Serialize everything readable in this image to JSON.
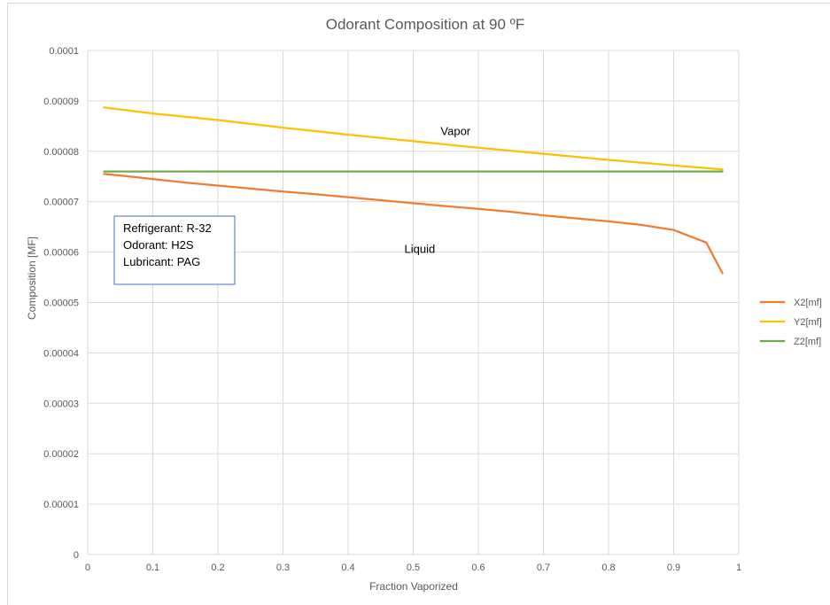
{
  "chart_data": {
    "type": "line",
    "title": "Odorant Composition at 90 ºF",
    "xlabel": "Fraction Vaporized",
    "ylabel": "Composition [MF]",
    "xlim": [
      0,
      1
    ],
    "ylim": [
      0,
      0.0001
    ],
    "x_ticks": [
      "0",
      "0.1",
      "0.2",
      "0.3",
      "0.4",
      "0.5",
      "0.6",
      "0.7",
      "0.8",
      "0.9",
      "1"
    ],
    "y_ticks": [
      "0",
      "0.00001",
      "0.00002",
      "0.00003",
      "0.00004",
      "0.00005",
      "0.00006",
      "0.00007",
      "0.00008",
      "0.00009",
      "0.0001"
    ],
    "grid": true,
    "legend_position": "right",
    "series": [
      {
        "name": "X2[mf]",
        "color": "#ED7D31",
        "points": [
          [
            0.025,
            7.55e-05
          ],
          [
            0.05,
            7.52e-05
          ],
          [
            0.1,
            7.45e-05
          ],
          [
            0.15,
            7.38e-05
          ],
          [
            0.2,
            7.32e-05
          ],
          [
            0.25,
            7.26e-05
          ],
          [
            0.3,
            7.2e-05
          ],
          [
            0.35,
            7.15e-05
          ],
          [
            0.4,
            7.09e-05
          ],
          [
            0.45,
            7.03e-05
          ],
          [
            0.5,
            6.97e-05
          ],
          [
            0.55,
            6.91e-05
          ],
          [
            0.6,
            6.86e-05
          ],
          [
            0.65,
            6.8e-05
          ],
          [
            0.7,
            6.73e-05
          ],
          [
            0.75,
            6.67e-05
          ],
          [
            0.8,
            6.61e-05
          ],
          [
            0.85,
            6.54e-05
          ],
          [
            0.9,
            6.44e-05
          ],
          [
            0.95,
            6.19e-05
          ],
          [
            0.975,
            5.58e-05
          ]
        ]
      },
      {
        "name": "Y2[mf]",
        "color": "#FFC000",
        "points": [
          [
            0.025,
            8.87e-05
          ],
          [
            0.1,
            8.75e-05
          ],
          [
            0.2,
            8.62e-05
          ],
          [
            0.3,
            8.47e-05
          ],
          [
            0.4,
            8.33e-05
          ],
          [
            0.5,
            8.2e-05
          ],
          [
            0.6,
            8.07e-05
          ],
          [
            0.7,
            7.95e-05
          ],
          [
            0.8,
            7.83e-05
          ],
          [
            0.9,
            7.72e-05
          ],
          [
            0.975,
            7.64e-05
          ]
        ]
      },
      {
        "name": "Z2[mf]",
        "color": "#70AD47",
        "points": [
          [
            0.025,
            7.6e-05
          ],
          [
            0.975,
            7.6e-05
          ]
        ]
      }
    ],
    "annotations": [
      {
        "text": "Vapor",
        "x": 0.565,
        "y": 8.32e-05
      },
      {
        "text": "Liquid",
        "x": 0.51,
        "y": 5.98e-05
      }
    ],
    "text_box": {
      "lines": [
        "Refrigerant: R-32",
        "Odorant: H2S",
        "Lubricant: PAG"
      ]
    }
  }
}
